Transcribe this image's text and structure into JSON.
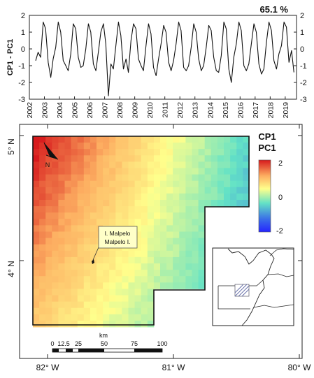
{
  "chart_data": [
    {
      "type": "line",
      "panel": "time-series",
      "annotation": "65.1 %",
      "ylabel": "CP1 - PC1",
      "ylim": [
        -3,
        2
      ],
      "yticks": [
        "2",
        "1",
        "0",
        "-1",
        "-2",
        "-3"
      ],
      "xlim": [
        2002,
        2019.75
      ],
      "xticks": [
        "2002",
        "2003",
        "2004",
        "2005",
        "2006",
        "2007",
        "2008",
        "2009",
        "2010",
        "2011",
        "2012",
        "2013",
        "2014",
        "2015",
        "2016",
        "2017",
        "2018",
        "2019"
      ],
      "series": [
        {
          "x": [
            2002.42,
            2002.58,
            2002.75,
            2002.92,
            2003.08,
            2003.25,
            2003.42,
            2003.58,
            2003.75,
            2003.92,
            2004.08,
            2004.25,
            2004.42,
            2004.58,
            2004.75,
            2004.92,
            2005.08,
            2005.25,
            2005.42,
            2005.58,
            2005.75,
            2005.92,
            2006.08,
            2006.25,
            2006.42,
            2006.58,
            2006.75,
            2006.92,
            2007.08,
            2007.25,
            2007.42,
            2007.58,
            2007.75,
            2007.92,
            2008.08,
            2008.25,
            2008.42,
            2008.58,
            2008.75,
            2008.92,
            2009.08,
            2009.25,
            2009.42,
            2009.58,
            2009.75,
            2009.92,
            2010.08,
            2010.25,
            2010.42,
            2010.58,
            2010.75,
            2010.92,
            2011.08,
            2011.25,
            2011.42,
            2011.58,
            2011.75,
            2011.92,
            2012.08,
            2012.25,
            2012.42,
            2012.58,
            2012.75,
            2012.92,
            2013.08,
            2013.25,
            2013.42,
            2013.58,
            2013.75,
            2013.92,
            2014.08,
            2014.25,
            2014.42,
            2014.58,
            2014.75,
            2014.92,
            2015.08,
            2015.25,
            2015.42,
            2015.58,
            2015.75,
            2015.92,
            2016.08,
            2016.25,
            2016.42,
            2016.58,
            2016.75,
            2016.92,
            2017.08,
            2017.25,
            2017.42,
            2017.58,
            2017.75,
            2017.92,
            2018.08,
            2018.25,
            2018.42,
            2018.58,
            2018.75,
            2018.92,
            2019.08,
            2019.25,
            2019.42,
            2019.58
          ],
          "y": [
            -0.7,
            -0.2,
            -0.5,
            1.6,
            1.2,
            -0.8,
            -1.7,
            -0.6,
            0.1,
            1.6,
            1.0,
            -0.7,
            -1.0,
            -1.3,
            -0.3,
            1.5,
            1.2,
            -0.5,
            -1.1,
            -1.0,
            0.0,
            1.5,
            1.0,
            -0.9,
            -1.3,
            -0.2,
            1.0,
            1.5,
            0.3,
            -2.8,
            -0.9,
            -1.2,
            0.2,
            1.6,
            0.8,
            -1.2,
            -0.6,
            -1.4,
            0.5,
            1.5,
            1.2,
            -0.6,
            -1.0,
            -1.3,
            0.2,
            1.5,
            0.9,
            -1.1,
            -1.6,
            -0.6,
            0.3,
            1.4,
            1.0,
            -0.8,
            -1.3,
            -0.7,
            0.3,
            1.6,
            1.1,
            -1.1,
            -1.3,
            -1.0,
            0.1,
            1.5,
            1.0,
            -0.6,
            -1.3,
            -1.0,
            0.1,
            1.4,
            1.1,
            -0.5,
            -1.3,
            -1.4,
            -0.4,
            1.6,
            1.2,
            -1.2,
            -2.0,
            -0.5,
            0.3,
            1.6,
            1.1,
            -1.0,
            -1.3,
            -0.9,
            0.3,
            1.5,
            1.0,
            -0.9,
            -1.5,
            -1.2,
            0.4,
            1.6,
            1.1,
            -0.7,
            -1.2,
            -0.3,
            0.2,
            1.6,
            1.3,
            -0.8,
            -0.1,
            -1.4
          ]
        }
      ]
    },
    {
      "type": "heatmap",
      "panel": "map",
      "legend_title_1": "CP1",
      "legend_title_2": "PC1",
      "colorbar_range": [
        -2,
        2
      ],
      "colorbar_ticks": [
        "2",
        "0",
        "-2"
      ],
      "colorbar_colors": [
        "#d7191c",
        "#fdae61",
        "#ffff8c",
        "#63e2c6",
        "#3a6fe8",
        "#2525ff"
      ],
      "lon_ticks": [
        "82° W",
        "81° W",
        "80° W"
      ],
      "lat_ticks": [
        "5° N",
        "4° N"
      ],
      "island_label_line1": "I. Malpelo",
      "island_label_line2": "Malpelo I.",
      "north_arrow": "N",
      "scale_unit": "km",
      "scale_ticks": [
        "0",
        "12.5",
        "25",
        "50",
        "75",
        "100"
      ]
    }
  ]
}
